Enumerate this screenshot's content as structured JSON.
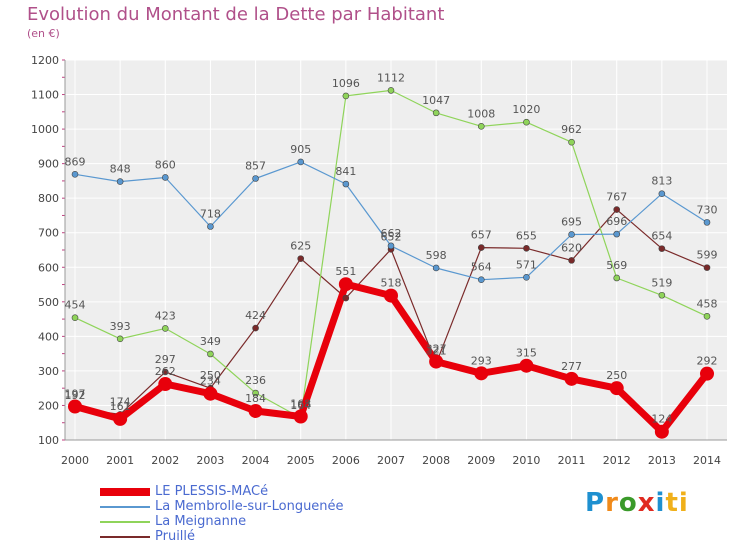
{
  "header": {
    "title": "Evolution du Montant de la Dette par Habitant",
    "subtitle": "(en €)"
  },
  "brand": {
    "letters": [
      "P",
      "r",
      "o",
      "x",
      "i",
      "ti"
    ]
  },
  "chart_data": {
    "type": "line",
    "title": "Evolution du Montant de la Dette par Habitant",
    "ylabel": "(en €)",
    "ylim": [
      100,
      1200
    ],
    "yticks": [
      100,
      200,
      300,
      400,
      500,
      600,
      700,
      800,
      900,
      1000,
      1100,
      1200
    ],
    "x": [
      "2000",
      "2001",
      "2002",
      "2003",
      "2004",
      "2005",
      "2006",
      "2007",
      "2008",
      "2009",
      "2010",
      "2011",
      "2012",
      "2013",
      "2014"
    ],
    "grid": true,
    "legend_position": "bottom-left",
    "series": [
      {
        "name": "LE PLESSIS-MACé",
        "color": "#e8000b",
        "thick": true,
        "values": [
          197,
          161,
          262,
          234,
          184,
          168,
          551,
          518,
          327,
          293,
          315,
          277,
          250,
          124,
          292
        ],
        "labels": [
          "197",
          "161",
          "262",
          "234",
          "184",
          "168",
          "551",
          "518",
          "327",
          "293",
          "315",
          "277",
          "250",
          "124",
          "292"
        ]
      },
      {
        "name": "La Membrolle-sur-Longuenée",
        "color": "#5a98d0",
        "thick": false,
        "values": [
          869,
          848,
          860,
          718,
          857,
          905,
          841,
          662,
          598,
          564,
          571,
          695,
          696,
          813,
          730
        ],
        "labels": [
          "869",
          "848",
          "860",
          "718",
          "857",
          "905",
          "841",
          "662",
          "598",
          "564",
          "571",
          "695",
          "696",
          "813",
          "730"
        ]
      },
      {
        "name": "La Meignanne",
        "color": "#8fd45a",
        "thick": false,
        "values": [
          454,
          393,
          423,
          349,
          236,
          164,
          1096,
          1112,
          1047,
          1008,
          1020,
          962,
          569,
          519,
          458
        ],
        "labels": [
          "454",
          "393",
          "423",
          "349",
          "236",
          "164",
          "1096",
          "1112",
          "1047",
          "1008",
          "1020",
          "962",
          "569",
          "519",
          "458"
        ]
      },
      {
        "name": "Pruillé",
        "color": "#7a2a2a",
        "thick": false,
        "values": [
          192,
          174,
          297,
          250,
          424,
          625,
          511,
          652,
          321,
          657,
          655,
          620,
          767,
          654,
          599
        ],
        "labels": [
          "192",
          "174",
          "297",
          "250",
          "424",
          "625",
          "",
          "652",
          "321",
          "657",
          "655",
          "620",
          "767",
          "654",
          "599"
        ]
      }
    ]
  }
}
